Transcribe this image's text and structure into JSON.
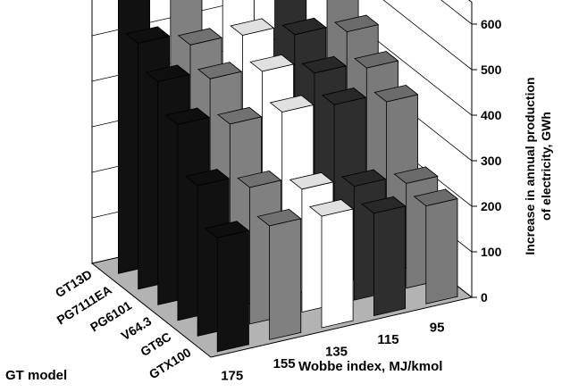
{
  "chart_data": {
    "type": "bar",
    "variant": "3d-column",
    "title": "",
    "zlabel": [
      "Increase in annual production",
      "of electricity, GWh"
    ],
    "zlim": [
      0,
      600
    ],
    "zticks": [
      "0",
      "100",
      "200",
      "300",
      "400",
      "500",
      "600"
    ],
    "xlabel": "Wobbe index, MJ/kmol",
    "x_categories": [
      "175",
      "155",
      "135",
      "115",
      "95"
    ],
    "ylabel": "GT model",
    "y_categories": [
      "GT13D",
      "PG7111EA",
      "PG6101",
      "V64.3",
      "GT8C",
      "GTX100"
    ],
    "grid": true,
    "series": [
      {
        "name": "GT13D",
        "values": [
          610,
          595,
          590,
          570,
          545
        ]
      },
      {
        "name": "PG7111EA",
        "values": [
          540,
          510,
          505,
          480,
          460
        ]
      },
      {
        "name": "PG6101",
        "values": [
          490,
          470,
          460,
          430,
          415
        ]
      },
      {
        "name": "V64.3",
        "values": [
          430,
          405,
          405,
          395,
          375
        ]
      },
      {
        "name": "GT8C",
        "values": [
          330,
          300,
          270,
          250,
          230
        ]
      },
      {
        "name": "GTX100",
        "values": [
          250,
          250,
          245,
          225,
          215
        ]
      }
    ],
    "colors": {
      "175": "#111111",
      "155": "#808080",
      "135": "#ffffff",
      "115": "#2e2e2e",
      "95": "#7a7a7a"
    },
    "floor_color": "#b3b3b3"
  }
}
